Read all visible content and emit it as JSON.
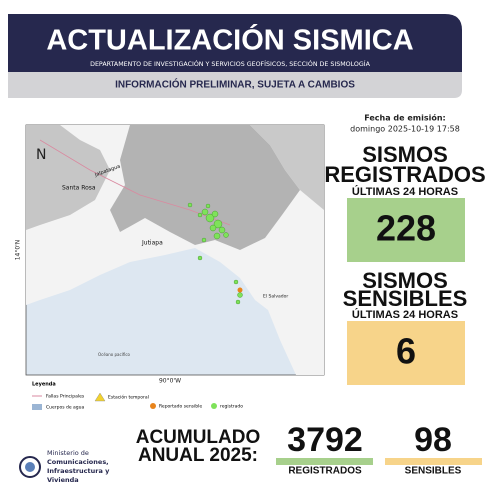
{
  "header": {
    "title": "ACTUALIZACIÓN SISMICA",
    "subtitle": "DEPARTAMENTO DE INVESTIGACIÓN Y SERVICIOS GEOFÍSICOS, SECCIÓN DE SISMOLOGÍA"
  },
  "notice": "INFORMACIÓN PRELIMINAR, SUJETA A CAMBIOS",
  "emission": {
    "label": "Fecha de emisión:",
    "date": "domingo 2025-10-19 17:58"
  },
  "registered": {
    "title1": "SISMOS",
    "title2": "REGISTRADOS",
    "period": "ÚLTIMAS 24 HORAS",
    "value": 228
  },
  "sensible": {
    "title1": "SISMOS",
    "title2": "SENSIBLES",
    "period": "ÚLTIMAS 24 HORAS",
    "value": 6
  },
  "map": {
    "labels": [
      "Santa Rosa",
      "Jalpatagua",
      "Jutiapa",
      "El Salvador",
      "Océano pacífico"
    ],
    "lat": "14°0'N",
    "lon": "90°0'W",
    "legend": {
      "title": "Leyenda",
      "faults": "Fallas Principales",
      "water": "Cuerpos de agua",
      "station": "Estación temporal",
      "sensible": "Reportado sensible",
      "registered": "registrado"
    }
  },
  "accumulated": {
    "label1": "ACUMULADO",
    "label2": "ANUAL 2025:",
    "registered_value": 3792,
    "registered_label": "REGISTRADOS",
    "sensible_value": 98,
    "sensible_label": "SENSIBLES"
  },
  "ministry": {
    "line1": "Ministerio de",
    "line2": "Comunicaciones,",
    "line3": "Infraestructura y",
    "line4": "Vivienda"
  }
}
